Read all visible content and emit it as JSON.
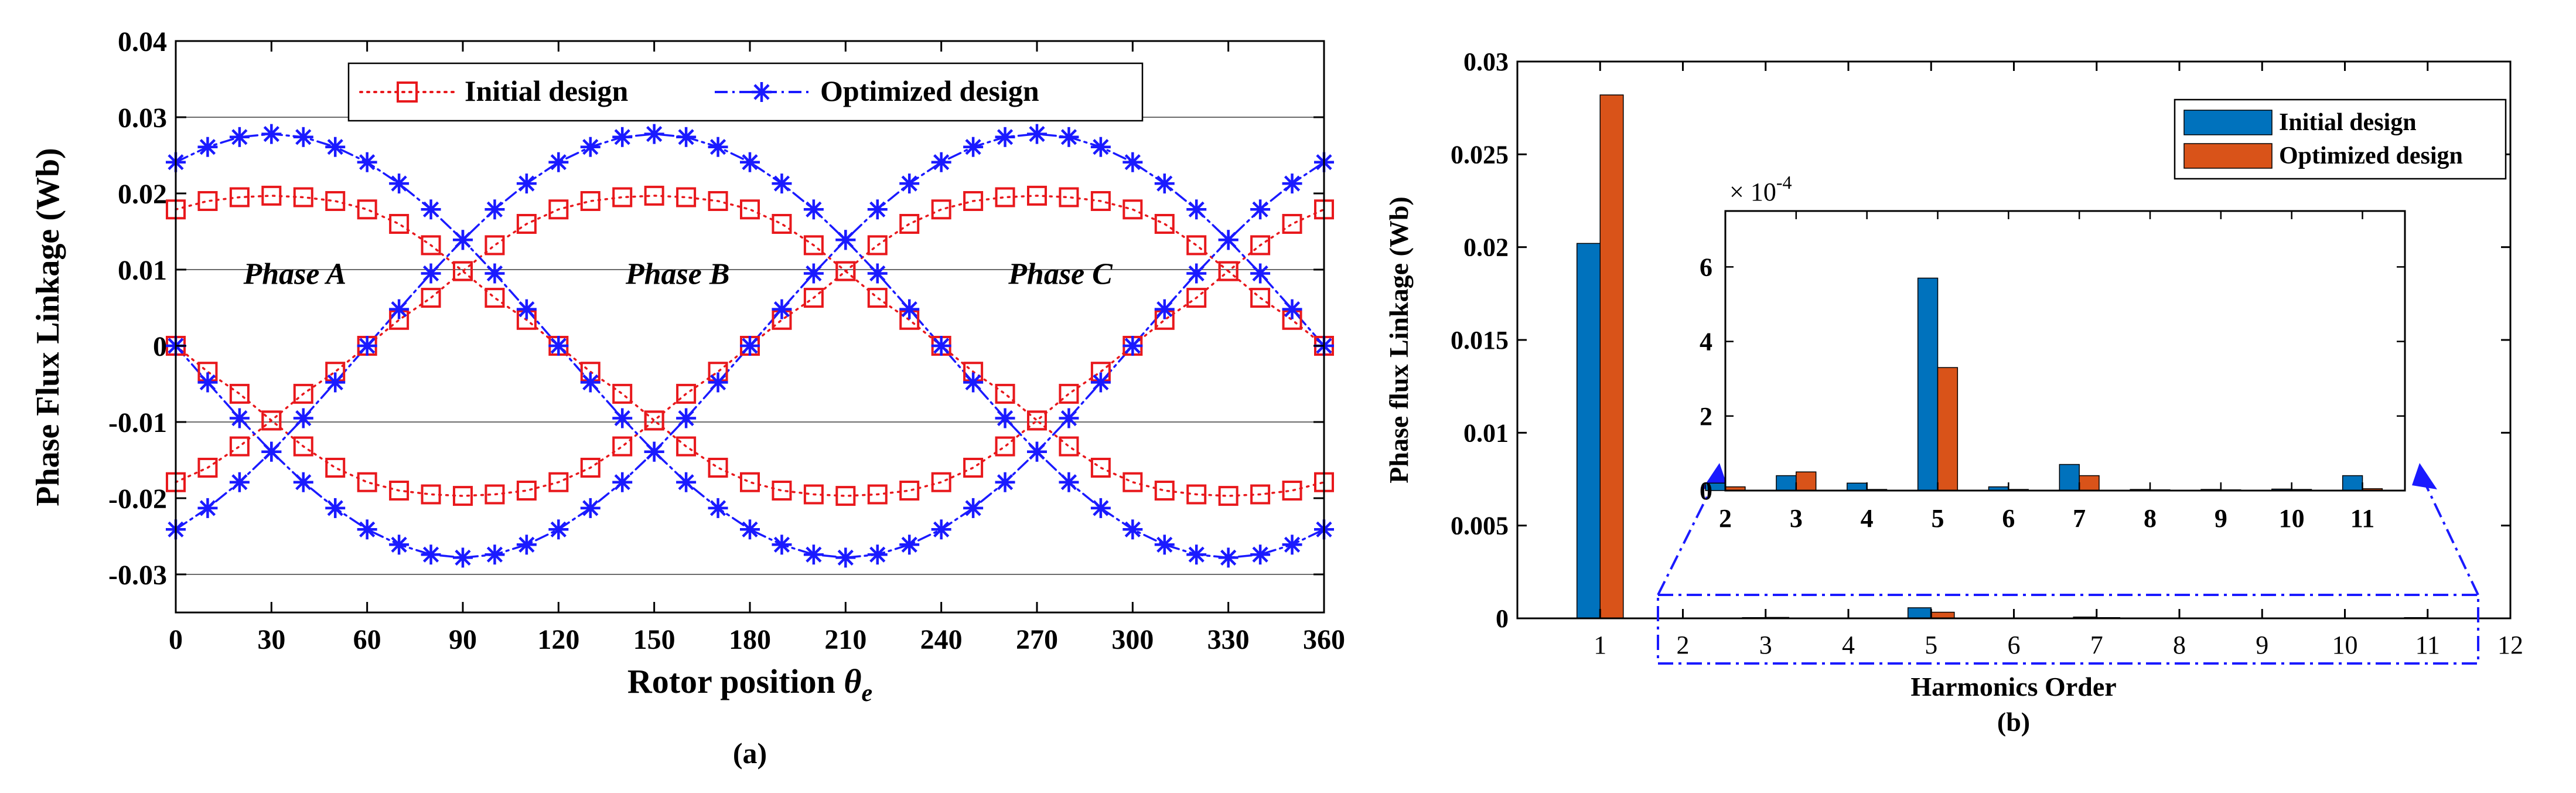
{
  "chart_data": [
    {
      "id": "a",
      "type": "line",
      "caption": "(a)",
      "xlabel_main": "Rotor position ",
      "xlabel_symbol": "θ",
      "xlabel_sub": "e",
      "ylabel": "Phase Flux Linkage (Wb)",
      "xlim": [
        0,
        360
      ],
      "ylim": [
        -0.035,
        0.04
      ],
      "xticks": [
        0,
        30,
        60,
        90,
        120,
        150,
        180,
        210,
        240,
        270,
        300,
        330,
        360
      ],
      "yticks": [
        -0.03,
        -0.02,
        -0.01,
        0,
        0.01,
        0.02,
        0.03,
        0.04
      ],
      "ytick_labels": [
        "-0.03",
        "-0.02",
        "-0.01",
        "0",
        "0.01",
        "0.02",
        "0.03",
        "0.04"
      ],
      "gridlines_y": [
        -0.03,
        -0.01,
        0.01,
        0.03
      ],
      "legend": {
        "placement": "top-center",
        "entries": [
          "Initial design",
          "Optimized design"
        ]
      },
      "phase_labels": [
        {
          "text": "Phase A",
          "x": 30,
          "y": 0.0095
        },
        {
          "text": "Phase B",
          "x": 150,
          "y": 0.0095
        },
        {
          "text": "Phase C",
          "x": 270,
          "y": 0.0095
        }
      ],
      "series": [
        {
          "name": "Initial design",
          "color": "#e8181c",
          "marker": "square",
          "linestyle": "dotted",
          "amplitude": 0.0197,
          "x": [
            0,
            10,
            20,
            30,
            40,
            50,
            60,
            70,
            80,
            90,
            100,
            110,
            120,
            130,
            140,
            150,
            160,
            170,
            180,
            190,
            200,
            210,
            220,
            230,
            240,
            250,
            260,
            270,
            280,
            290,
            300,
            310,
            320,
            330,
            340,
            350,
            360
          ],
          "phases": [
            {
              "name": "Phase A",
              "values": [
                0,
                -0.0034,
                -0.0063,
                -0.0098,
                -0.0063,
                -0.0034,
                0,
                0.0034,
                0.0063,
                0.0098,
                0.0063,
                0.0034,
                0,
                -0.0034,
                -0.0063,
                -0.0098,
                -0.0063,
                -0.0034,
                0,
                0.0034,
                0.0063,
                0.0098,
                0.0063,
                0.0034,
                0,
                -0.0034,
                -0.0063,
                -0.0098,
                -0.0063,
                -0.0034,
                0,
                0.0034,
                0.0063,
                0.0098,
                0.0063,
                0.0034,
                0
              ]
            },
            {
              "name": "Phase B",
              "values": [
                -0.0179,
                -0.016,
                -0.0132,
                -0.0098,
                -0.0132,
                -0.016,
                -0.0179,
                -0.019,
                -0.0195,
                -0.0197,
                -0.0195,
                -0.019,
                -0.0179,
                -0.016,
                -0.0132,
                -0.0098,
                -0.0132,
                -0.016,
                -0.0179,
                -0.019,
                -0.0195,
                -0.0197,
                -0.0195,
                -0.019,
                -0.0179,
                -0.016,
                -0.0132,
                -0.0098,
                -0.0132,
                -0.016,
                -0.0179,
                -0.019,
                -0.0195,
                -0.0197,
                -0.0195,
                -0.019,
                -0.0179
              ]
            },
            {
              "name": "Phase C",
              "values": [
                0.0179,
                0.019,
                0.0195,
                0.0197,
                0.0195,
                0.019,
                0.0179,
                0.016,
                0.0132,
                0.0098,
                0.0132,
                0.016,
                0.0179,
                0.019,
                0.0195,
                0.0197,
                0.0195,
                0.019,
                0.0179,
                0.016,
                0.0132,
                0.0098,
                0.0132,
                0.016,
                0.0179,
                0.019,
                0.0195,
                0.0197,
                0.0195,
                0.019,
                0.0179,
                0.016,
                0.0132,
                0.0098,
                0.0132,
                0.016,
                0.0179
              ]
            }
          ]
        },
        {
          "name": "Optimized design",
          "color": "#1a1aff",
          "marker": "asterisk",
          "linestyle": "dashdot",
          "amplitude": 0.0278,
          "x": [
            0,
            10,
            20,
            30,
            40,
            50,
            60,
            70,
            80,
            90,
            100,
            110,
            120,
            130,
            140,
            150,
            160,
            170,
            180,
            190,
            200,
            210,
            220,
            230,
            240,
            250,
            260,
            270,
            280,
            290,
            300,
            310,
            320,
            330,
            340,
            350,
            360
          ],
          "phases": [
            {
              "name": "Phase A",
              "values": [
                0,
                -0.0048,
                -0.0095,
                -0.0139,
                -0.0179,
                -0.0213,
                -0.0241,
                -0.0261,
                -0.0274,
                -0.0278,
                -0.0274,
                -0.0261,
                -0.0241,
                -0.0213,
                -0.0179,
                -0.0139,
                -0.0095,
                -0.0048,
                0,
                0.0048,
                0.0095,
                0.0139,
                0.0179,
                0.0213,
                0.0241,
                0.0261,
                0.0274,
                0.0278,
                0.0274,
                0.0261,
                0.0241,
                0.0213,
                0.0179,
                0.0139,
                0.0095,
                0.0048,
                0
              ]
            },
            {
              "name": "Phase B",
              "values": [
                -0.0241,
                -0.0213,
                -0.0179,
                -0.0139,
                -0.0095,
                -0.0048,
                0,
                0.0048,
                0.0095,
                0.0139,
                0.0179,
                0.0213,
                0.0241,
                0.0261,
                0.0274,
                0.0278,
                0.0274,
                0.0261,
                0.0241,
                0.0213,
                0.0179,
                0.0139,
                0.0095,
                0.0048,
                0,
                -0.0048,
                -0.0095,
                -0.0139,
                -0.0179,
                -0.0213,
                -0.0241,
                -0.0261,
                -0.0274,
                -0.0278,
                -0.0274,
                -0.0261,
                -0.0241
              ]
            },
            {
              "name": "Phase C",
              "values": [
                0.0241,
                0.0261,
                0.0274,
                0.0278,
                0.0274,
                0.0261,
                0.0241,
                0.0213,
                0.0179,
                0.0139,
                0.0095,
                0.0048,
                0,
                -0.0048,
                -0.0095,
                -0.0139,
                -0.0179,
                -0.0213,
                -0.0241,
                -0.0261,
                -0.0274,
                -0.0278,
                -0.0274,
                -0.0261,
                -0.0241,
                -0.0213,
                -0.0179,
                -0.0139,
                -0.0095,
                -0.0048,
                0,
                0.0048,
                0.0095,
                0.0139,
                0.0179,
                0.0213,
                0.0241
              ]
            }
          ]
        }
      ]
    },
    {
      "id": "b",
      "type": "bar",
      "caption": "(b)",
      "xlabel": "Harmonics Order",
      "ylabel": "Phase flux Linkage (Wb)",
      "xlim": [
        0,
        12
      ],
      "ylim": [
        0,
        0.03
      ],
      "xticks": [
        1,
        2,
        3,
        4,
        5,
        6,
        7,
        8,
        9,
        10,
        11,
        12
      ],
      "yticks": [
        0,
        0.005,
        0.01,
        0.015,
        0.02,
        0.025,
        0.03
      ],
      "ytick_labels": [
        "0",
        "0.005",
        "0.01",
        "0.015",
        "0.02",
        "0.025",
        "0.03"
      ],
      "legend": {
        "placement": "top-right",
        "entries": [
          "Initial design",
          "Optimized design"
        ]
      },
      "categories": [
        1,
        2,
        3,
        4,
        5,
        6,
        7,
        8,
        9,
        10,
        11
      ],
      "series": [
        {
          "name": "Initial design",
          "color": "#0072bd",
          "values": [
            0.0202,
            2e-05,
            4e-05,
            2e-05,
            0.00057,
            1e-05,
            7e-05,
            3e-06,
            3e-06,
            4e-06,
            4e-05
          ]
        },
        {
          "name": "Optimized design",
          "color": "#d95319",
          "values": [
            0.0282,
            1e-05,
            5e-05,
            3e-06,
            0.00033,
            3e-06,
            4e-05,
            2e-06,
            2e-06,
            3e-06,
            5e-06
          ]
        }
      ],
      "inset": {
        "xlim": [
          2,
          11.6
        ],
        "ylim": [
          0,
          0.00075
        ],
        "xticks": [
          2,
          3,
          4,
          5,
          6,
          7,
          8,
          9,
          10,
          11
        ],
        "yticks": [
          0,
          0.0002,
          0.0004,
          0.0006
        ],
        "ytick_labels": [
          "0",
          "2",
          "4",
          "6"
        ],
        "exponent_base": "× 10",
        "exponent_power": "-4"
      }
    }
  ]
}
